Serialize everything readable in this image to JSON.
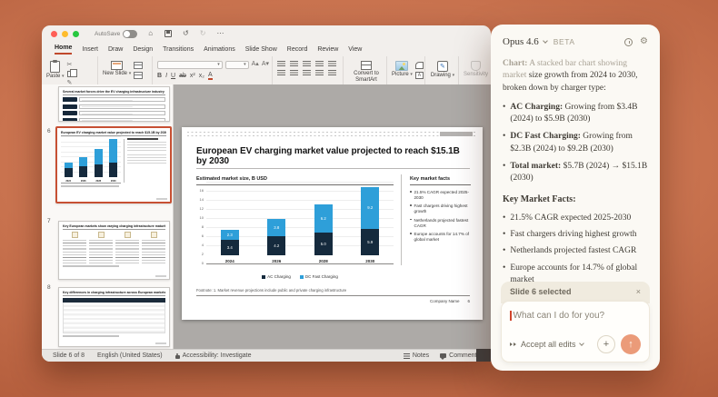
{
  "app": {
    "titlebar": {
      "autosave": "AutoSave"
    },
    "tabs": [
      "Home",
      "Insert",
      "Draw",
      "Design",
      "Transitions",
      "Animations",
      "Slide Show",
      "Record",
      "Review",
      "View"
    ],
    "active_tab": "Home",
    "ribbon": {
      "paste": "Paste",
      "new_slide": "New Slide",
      "convert_smartart": "Convert to SmartArt",
      "picture": "Picture",
      "drawing": "Drawing",
      "sensitivity": "Sensitivity"
    },
    "statusbar": {
      "slide": "Slide 6 of 8",
      "language": "English (United States)",
      "accessibility": "Accessibility: Investigate",
      "notes": "Notes",
      "comments": "Comments"
    }
  },
  "icons": {
    "home": "⌂",
    "undo": "↺",
    "redo": "↻",
    "more": "⋯",
    "scissors": "✂",
    "pencil": "✎",
    "close": "×",
    "plus": "+",
    "send_arrow": "↑",
    "gear": "⚙",
    "bold": "B",
    "italic": "I",
    "underline": "U",
    "strike": "ab",
    "superscript": "x²",
    "subscript": "x₂",
    "font_color": "A",
    "highlight": "A",
    "textbox": "A"
  },
  "thumbnails": {
    "items": [
      {
        "num": "",
        "title": "Several market forces drive the EV charging infrastructure industry"
      },
      {
        "num": "6",
        "title": "European EV charging market value projected to reach $15.1B by 2030",
        "selected": true
      },
      {
        "num": "7",
        "title": "Key European markets show varying charging infrastructure maturity"
      },
      {
        "num": "8",
        "title": "Key differences in charging infrastructure across European markets"
      }
    ]
  },
  "slide": {
    "title": "European EV charging market value projected to reach $15.1B by 2030",
    "left_heading": "Estimated market size, B USD",
    "right_heading": "Key market facts",
    "facts": [
      "21.5% CAGR expected 2025-2030",
      "Fast chargers driving highest growth",
      "Netherlands projected fastest CAGR",
      "Europe accounts for 14.7% of global market"
    ],
    "footnote": "Footnote: 1. Market revenue projections include public and private charging infrastructure",
    "company": "Company Name",
    "page_number": "6"
  },
  "chart_data": {
    "type": "bar",
    "stacked": true,
    "title": "Estimated market size, B USD",
    "categories": [
      "2024",
      "2026",
      "2028",
      "2030"
    ],
    "series": [
      {
        "name": "AC Charging",
        "color": "#152A3D",
        "values": [
          3.4,
          4.2,
          5.0,
          5.9
        ]
      },
      {
        "name": "DC Fast Charging",
        "color": "#2E9FD9",
        "values": [
          2.3,
          3.8,
          6.2,
          9.2
        ]
      }
    ],
    "totals": [
      5.7,
      8.0,
      11.2,
      15.1
    ],
    "ylim": [
      0,
      16
    ],
    "ytick_step": 2,
    "grid": true,
    "legend_position": "bottom"
  },
  "assistant": {
    "model": "Opus 4.6",
    "beta": "BETA",
    "chart_label": "Chart:",
    "desc_gray": " A stacked bar chart showing market ",
    "desc_rest": "size growth from 2024 to 2030, broken down by charger type:",
    "bullets": [
      {
        "lead": "AC Charging:",
        "text": " Growing from $3.4B (2024) to $5.9B (2030)"
      },
      {
        "lead": "DC Fast Charging:",
        "text": " Growing from $2.3B (2024) to $9.2B (2030)"
      },
      {
        "lead": "Total market:",
        "text": " $5.7B (2024) → $15.1B (2030)"
      }
    ],
    "facts_heading": "Key Market Facts:",
    "facts": [
      "21.5% CAGR expected 2025-2030",
      "Fast chargers driving highest growth",
      "Netherlands projected fastest CAGR",
      "Europe accounts for 14.7% of global market"
    ],
    "chip": "Slide 6 selected",
    "input_placeholder": "What can I do for you?",
    "accept_edits": "Accept all edits"
  },
  "colors": {
    "accent_coral": "#EB9B79",
    "ppt_accent": "#C0492C",
    "chart_navy": "#152A3D",
    "chart_blue": "#2E9FD9"
  }
}
